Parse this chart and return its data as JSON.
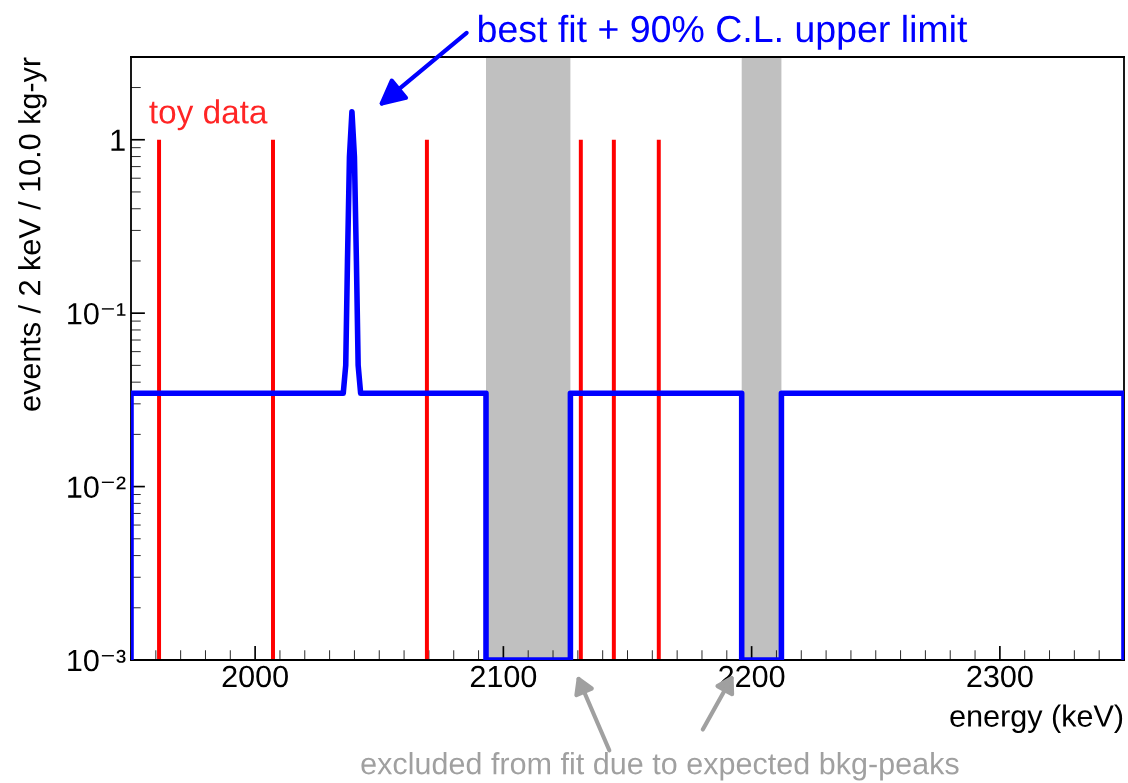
{
  "chart_data": {
    "type": "line",
    "xlabel": "energy (keV)",
    "ylabel": "events / 2 keV / 10.0 kg-yr",
    "log": "y",
    "xlim": [
      1950,
      2350
    ],
    "xticks": [
      2000,
      2100,
      2200,
      2300
    ],
    "ylim": [
      0.001,
      3
    ],
    "yticks": [
      {
        "value": 0.001,
        "label": "10⁻³"
      },
      {
        "value": 0.01,
        "label": "10⁻²"
      },
      {
        "value": 0.1,
        "label": "10⁻¹"
      },
      {
        "value": 1,
        "label": "1"
      }
    ],
    "grid": false,
    "line_style": "solid",
    "marker": "none",
    "series": [
      {
        "name": "toy data",
        "type": "bar",
        "color": "#ff0000",
        "x": [
          1961.3,
          2007.2,
          2069.2,
          2131.2,
          2144.5,
          2162.6
        ],
        "values": [
          1,
          1,
          1,
          1,
          1,
          1
        ]
      },
      {
        "name": "best fit + 90% C.L. upper limit",
        "color": "#0000ff",
        "x": [
          1950,
          1950,
          2035.5,
          2036.5,
          2037.2,
          2038,
          2039,
          2040,
          2040.8,
          2041.5,
          2042.5,
          2093,
          2093,
          2127,
          2127,
          2196,
          2196,
          2212,
          2212,
          2350,
          2350
        ],
        "values": [
          0.001,
          0.0345,
          0.0345,
          0.05,
          0.2,
          0.8,
          1.45,
          0.8,
          0.2,
          0.05,
          0.0345,
          0.0345,
          0.001,
          0.001,
          0.0345,
          0.0345,
          0.001,
          0.001,
          0.0345,
          0.0345,
          0.001
        ]
      }
    ],
    "bands": [
      {
        "axis": "x",
        "from": 2093,
        "to": 2127,
        "color": "#c0c0c0"
      },
      {
        "axis": "x",
        "from": 2196,
        "to": 2212,
        "color": "#c0c0c0"
      }
    ],
    "annotations": [
      "excluded from fit due to expected bkg-peaks"
    ]
  }
}
